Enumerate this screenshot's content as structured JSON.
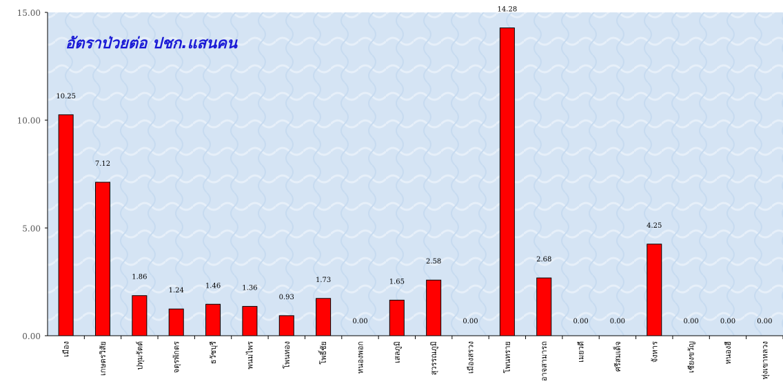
{
  "chart_data": {
    "type": "bar",
    "title": "อัตราป่วยต่อ ปชก.แสนคน",
    "categories": [
      "เมือง",
      "เกษตรวิสัย",
      "ปทุมรัตต์",
      "จตุรพักตร",
      "ธวัชบุรี",
      "พนมไพร",
      "โพนทอง",
      "โพธิ์ชัย",
      "หนองพอก",
      "เสลภูมิ",
      "สุวรรณภูมิ",
      "เมืองสรวง",
      "โพนทราย",
      "อาจสามารถ",
      "เมยวดี",
      "ศรีสมเด็จ",
      "จังหาร",
      "เชียงขวัญ",
      "หนองฮี",
      "ทุ่งเขาหลวง"
    ],
    "values": [
      10.25,
      7.12,
      1.86,
      1.24,
      1.46,
      1.36,
      0.93,
      1.73,
      0.0,
      1.65,
      2.58,
      0.0,
      14.28,
      2.68,
      0.0,
      0.0,
      4.25,
      0.0,
      0.0,
      0.0
    ],
    "value_labels": [
      "10.25",
      "7.12",
      "1.86",
      "1.24",
      "1.46",
      "1.36",
      "0.93",
      "1.73",
      "0.00",
      "1.65",
      "2.58",
      "0.00",
      "14.28",
      "2.68",
      "0.00",
      "0.00",
      "4.25",
      "0.00",
      "0.00",
      "0.00"
    ],
    "yticks": [
      0,
      5,
      10,
      15
    ],
    "ytick_labels": [
      "0.00",
      "5.00",
      "10.00",
      "15.00"
    ],
    "ylim": [
      0,
      15
    ],
    "xlabel": "",
    "ylabel": "",
    "grid": false,
    "legend": "none",
    "colors": {
      "bar": "#ff0000",
      "bar_edge": "#000000",
      "plot_bg": "#d7e6f5",
      "title": "#1a1ad6",
      "axis": "#000000"
    }
  }
}
